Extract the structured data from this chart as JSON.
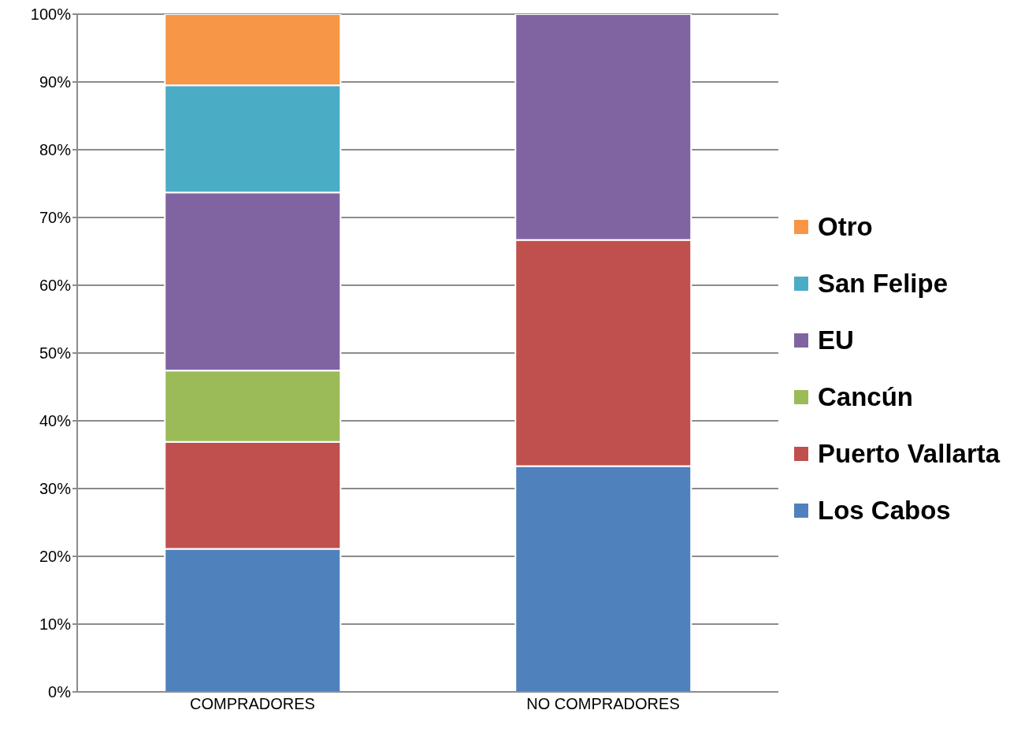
{
  "chart_data": {
    "type": "bar",
    "stacked": true,
    "categories": [
      "COMPRADORES",
      "NO COMPRADORES"
    ],
    "series": [
      {
        "name": "Los Cabos",
        "color": "#4f81bd",
        "values": [
          21.1,
          33.3
        ]
      },
      {
        "name": "Puerto Vallarta",
        "color": "#c0504d",
        "values": [
          15.8,
          33.4
        ]
      },
      {
        "name": "Cancún",
        "color": "#9bbb59",
        "values": [
          10.5,
          0
        ]
      },
      {
        "name": "EU",
        "color": "#8064a2",
        "values": [
          26.3,
          33.3
        ]
      },
      {
        "name": "San Felipe",
        "color": "#4bacc6",
        "values": [
          15.8,
          0
        ]
      },
      {
        "name": "Otro",
        "color": "#f79646",
        "values": [
          10.5,
          0
        ]
      }
    ],
    "ylim": [
      0,
      100
    ],
    "yticks": [
      {
        "value": 0,
        "label": "0%"
      },
      {
        "value": 10,
        "label": "10%"
      },
      {
        "value": 20,
        "label": "20%"
      },
      {
        "value": 30,
        "label": "30%"
      },
      {
        "value": 40,
        "label": "40%"
      },
      {
        "value": 50,
        "label": "50%"
      },
      {
        "value": 60,
        "label": "60%"
      },
      {
        "value": 70,
        "label": "70%"
      },
      {
        "value": 80,
        "label": "80%"
      },
      {
        "value": 90,
        "label": "90%"
      },
      {
        "value": 100,
        "label": "100%"
      }
    ],
    "grid": "y",
    "legend": "right"
  }
}
